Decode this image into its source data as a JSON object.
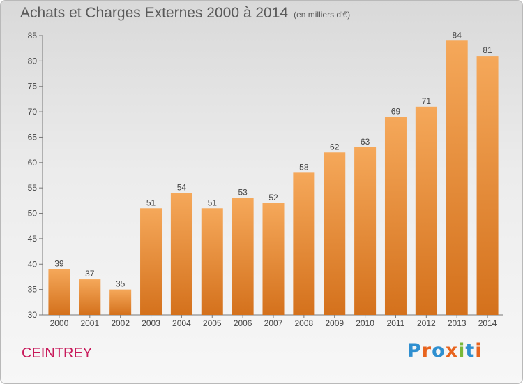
{
  "page": {
    "title": "Achats et Charges Externes 2000 à 2014",
    "unit": "(en milliers d'€)",
    "commune": "CEINTREY",
    "logo_text": "Proxiti",
    "logo_colors": [
      "#2f8fd0",
      "#e8641e",
      "#2f8fd0",
      "#e8641e",
      "#79b83a",
      "#2f8fd0",
      "#e8641e"
    ]
  },
  "chart_data": {
    "type": "bar",
    "title": "Achats et Charges Externes 2000 à 2014",
    "subtitle": "(en milliers d'€)",
    "categories": [
      "2000",
      "2001",
      "2002",
      "2003",
      "2004",
      "2005",
      "2006",
      "2007",
      "2008",
      "2009",
      "2010",
      "2011",
      "2012",
      "2013",
      "2014"
    ],
    "values": [
      39,
      37,
      35,
      51,
      54,
      51,
      53,
      52,
      58,
      62,
      63,
      69,
      71,
      84,
      81
    ],
    "ylim": [
      30,
      85
    ],
    "yticks": [
      30,
      35,
      40,
      45,
      50,
      55,
      60,
      65,
      70,
      75,
      80,
      85
    ],
    "grid": false,
    "data_labels": true,
    "bar_color_top": "#f5a85a",
    "bar_color_bottom": "#d4711c"
  }
}
